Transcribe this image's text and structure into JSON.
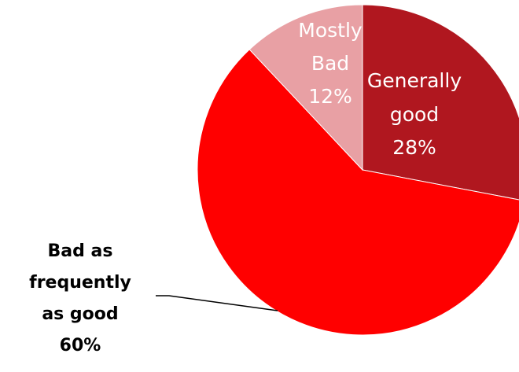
{
  "chart_data": {
    "type": "pie",
    "slices": [
      {
        "label": "Generally good",
        "value": 28,
        "value_label": "28%",
        "color": "#b0171f",
        "label_color": "#ffffff"
      },
      {
        "label": "Bad as frequently as good",
        "value": 60,
        "value_label": "60%",
        "color": "#ff0000",
        "label_color": "#000000"
      },
      {
        "label": "Mostly Bad",
        "value": 12,
        "value_label": "12%",
        "color": "#e8a0a4",
        "label_color": "#ffffff"
      }
    ],
    "slice_label_lines": [
      [
        "Generally",
        "good",
        "28%"
      ],
      [
        "Bad as",
        "frequently",
        "as good",
        "60%"
      ],
      [
        "Mostly",
        "Bad",
        "12%"
      ]
    ],
    "start_angle_deg": 0,
    "direction": "clockwise",
    "leader_line_on": "Bad as frequently as good"
  }
}
